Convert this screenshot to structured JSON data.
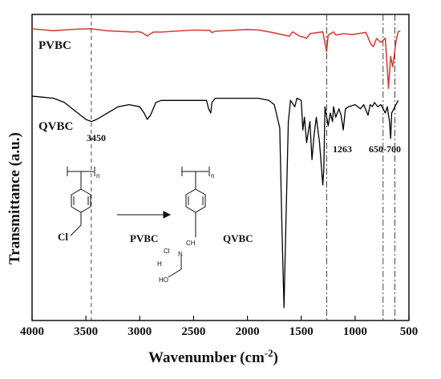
{
  "chart_data": {
    "type": "line",
    "xlabel": "Wavenumber (cm",
    "xlabel_sup": "-2",
    "ylabel": "Transmittance (a.u.)",
    "xlim": [
      4000,
      500
    ],
    "x_ticks": [
      "4000",
      "3500",
      "3000",
      "2500",
      "2000",
      "1500",
      "1000",
      "500"
    ],
    "x_tick_values": [
      4000,
      3500,
      3000,
      2500,
      2000,
      1500,
      1000,
      500
    ],
    "series": [
      {
        "name": "PVBC",
        "color": "#d9403a",
        "x": [
          4000,
          3800,
          3600,
          3450,
          3300,
          3100,
          3060,
          3020,
          2980,
          2930,
          2900,
          2870,
          2800,
          2500,
          2350,
          2330,
          2300,
          2000,
          1900,
          1800,
          1610,
          1580,
          1510,
          1490,
          1450,
          1420,
          1300,
          1265,
          1250,
          1200,
          1180,
          1110,
          1020,
          900,
          850,
          830,
          800,
          760,
          720,
          700,
          690,
          670,
          650,
          620,
          600,
          580
        ],
        "y": [
          0.0,
          0.01,
          0.01,
          0.015,
          0.02,
          0.03,
          0.06,
          0.05,
          0.04,
          0.1,
          0.09,
          0.05,
          0.03,
          0.02,
          0.04,
          0.05,
          0.02,
          0.02,
          0.03,
          0.03,
          0.1,
          0.06,
          0.12,
          0.1,
          0.14,
          0.09,
          0.04,
          0.32,
          0.1,
          0.06,
          0.08,
          0.06,
          0.1,
          0.06,
          0.22,
          0.26,
          0.16,
          0.2,
          0.12,
          0.6,
          0.9,
          0.4,
          0.55,
          0.2,
          0.05,
          0.02
        ]
      },
      {
        "name": "QVBC",
        "color": "#000000",
        "x": [
          4000,
          3900,
          3800,
          3700,
          3600,
          3500,
          3450,
          3400,
          3300,
          3200,
          3100,
          3000,
          2960,
          2930,
          2900,
          2850,
          2800,
          2700,
          2500,
          2380,
          2360,
          2340,
          2330,
          2300,
          2200,
          2000,
          1900,
          1800,
          1750,
          1700,
          1680,
          1660,
          1640,
          1620,
          1600,
          1560,
          1540,
          1500,
          1485,
          1470,
          1450,
          1420,
          1400,
          1380,
          1360,
          1330,
          1300,
          1290,
          1280,
          1250,
          1230,
          1210,
          1200,
          1180,
          1150,
          1130,
          1110,
          1090,
          1060,
          1000,
          950,
          920,
          880,
          860,
          840,
          820,
          790,
          760,
          740,
          720,
          700,
          690,
          680,
          670,
          660,
          640,
          620,
          600
        ],
        "y": [
          0.0,
          0.005,
          0.01,
          0.03,
          0.07,
          0.11,
          0.12,
          0.11,
          0.08,
          0.05,
          0.04,
          0.05,
          0.08,
          0.11,
          0.09,
          0.03,
          0.02,
          0.02,
          0.02,
          0.02,
          0.06,
          0.08,
          0.03,
          0.01,
          0.01,
          0.01,
          0.01,
          0.02,
          0.04,
          0.15,
          0.6,
          1.0,
          0.55,
          0.12,
          0.02,
          0.05,
          0.01,
          0.02,
          0.16,
          0.1,
          0.22,
          0.12,
          0.3,
          0.18,
          0.1,
          0.22,
          0.42,
          0.34,
          0.05,
          0.14,
          0.08,
          0.12,
          0.05,
          0.1,
          0.06,
          0.09,
          0.16,
          0.06,
          0.05,
          0.04,
          0.06,
          0.04,
          0.09,
          0.04,
          0.05,
          0.03,
          0.05,
          0.04,
          0.06,
          0.08,
          0.05,
          0.09,
          0.12,
          0.2,
          0.08,
          0.06,
          0.04,
          0.02
        ]
      }
    ],
    "annotations": [
      {
        "label": "3450",
        "x": 3450,
        "line_style": "dash"
      },
      {
        "label": "1263",
        "x": 1263,
        "line_style": "dashdot"
      },
      {
        "label": "650-700",
        "x": 740,
        "line_style": "dashdot"
      },
      {
        "label": "",
        "x": 630,
        "line_style": "dashdot"
      }
    ],
    "grid": false,
    "legend": "inline labels"
  },
  "chemistry": {
    "arrow_label_left": "PVBC",
    "arrow_label_right": "QVBC",
    "cl": "Cl",
    "n_sub": "n",
    "counter_ion": "Cl",
    "n_plus": "N",
    "ch3": "CH",
    "h3c": "H",
    "ho": "HO"
  }
}
